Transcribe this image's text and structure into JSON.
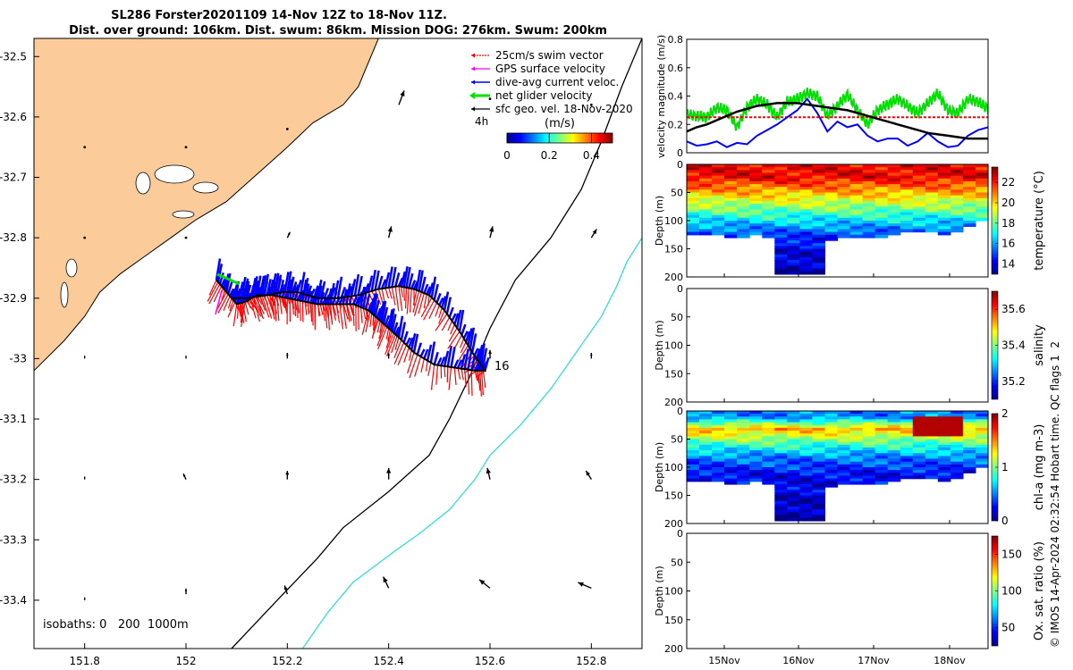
{
  "title_line1": "SL286 Forster20201109 14-Nov 12Z to 18-Nov 11Z.",
  "title_line2": "Dist. over ground: 106km. Dist. swum: 86km. Mission DOG: 276km. Swum: 200km",
  "credit": "© IMOS 14-Apr-2024 02:32:54 Hobart time. QC flags 1  2",
  "colors": {
    "land": "#fbcb9a",
    "track": "#000000",
    "swim": "#ff0000",
    "current": "#0000ff",
    "net": "#00e000",
    "gps": "#ff00ff",
    "isobath_far": "#33dddd",
    "arrow": "#000000"
  },
  "chart_data": [
    {
      "type": "map",
      "xlim": [
        151.7,
        152.9
      ],
      "ylim": [
        -33.48,
        -32.47
      ],
      "x_ticks": [
        "151.8",
        "152",
        "152.2",
        "152.4",
        "152.6",
        "152.8"
      ],
      "y_ticks": [
        "-32.5",
        "-32.6",
        "-32.7",
        "-32.8",
        "-32.9",
        "-33",
        "-33.1",
        "-33.2",
        "-33.3",
        "-33.4"
      ],
      "legend": [
        "25cm/s swim vector",
        "GPS surface velocity",
        "dive-avg current veloc.",
        "net glider velocity",
        "sfc geo. vel. 18-Nov-2020"
      ],
      "legend_placement": "top-right",
      "time_label": "4h",
      "colorbar": {
        "title": "(m/s)",
        "ticks": [
          "0",
          "0.2",
          "0.4"
        ],
        "range": [
          0,
          0.5
        ]
      },
      "isobaths_label": "isobaths: 0   200  1000m",
      "end_label": "16",
      "coast": [
        [
          151.7,
          -33.02
        ],
        [
          151.76,
          -32.97
        ],
        [
          151.8,
          -32.93
        ],
        [
          151.83,
          -32.89
        ],
        [
          151.87,
          -32.86
        ],
        [
          151.92,
          -32.83
        ],
        [
          151.97,
          -32.8
        ],
        [
          152.02,
          -32.77
        ],
        [
          152.08,
          -32.74
        ],
        [
          152.12,
          -32.71
        ],
        [
          152.16,
          -32.68
        ],
        [
          152.2,
          -32.65
        ],
        [
          152.25,
          -32.61
        ],
        [
          152.31,
          -32.58
        ],
        [
          152.34,
          -32.55
        ],
        [
          152.36,
          -32.51
        ],
        [
          152.38,
          -32.47
        ]
      ],
      "isobath_200": [
        [
          152.9,
          -32.47
        ],
        [
          152.86,
          -32.55
        ],
        [
          152.82,
          -32.64
        ],
        [
          152.78,
          -32.72
        ],
        [
          152.72,
          -32.8
        ],
        [
          152.65,
          -32.87
        ],
        [
          152.6,
          -32.95
        ],
        [
          152.56,
          -33.03
        ],
        [
          152.52,
          -33.1
        ],
        [
          152.48,
          -33.16
        ],
        [
          152.4,
          -33.22
        ],
        [
          152.31,
          -33.28
        ],
        [
          152.26,
          -33.33
        ],
        [
          152.18,
          -33.4
        ],
        [
          152.09,
          -33.48
        ]
      ],
      "isobath_1000": [
        [
          152.9,
          -32.8
        ],
        [
          152.87,
          -32.84
        ],
        [
          152.85,
          -32.88
        ],
        [
          152.82,
          -32.93
        ],
        [
          152.77,
          -32.99
        ],
        [
          152.72,
          -33.05
        ],
        [
          152.66,
          -33.11
        ],
        [
          152.6,
          -33.16
        ],
        [
          152.57,
          -33.2
        ],
        [
          152.52,
          -33.25
        ],
        [
          152.46,
          -33.29
        ],
        [
          152.41,
          -33.32
        ],
        [
          152.33,
          -33.37
        ],
        [
          152.28,
          -33.42
        ],
        [
          152.23,
          -33.48
        ]
      ],
      "track": [
        [
          152.06,
          -32.87
        ],
        [
          152.08,
          -32.89
        ],
        [
          152.1,
          -32.91
        ],
        [
          152.12,
          -32.905
        ],
        [
          152.14,
          -32.895
        ],
        [
          152.17,
          -32.895
        ],
        [
          152.2,
          -32.9
        ],
        [
          152.23,
          -32.905
        ],
        [
          152.26,
          -32.91
        ],
        [
          152.29,
          -32.91
        ],
        [
          152.33,
          -32.91
        ],
        [
          152.36,
          -32.92
        ],
        [
          152.38,
          -32.935
        ],
        [
          152.4,
          -32.95
        ],
        [
          152.42,
          -32.965
        ],
        [
          152.45,
          -32.99
        ],
        [
          152.49,
          -33.01
        ],
        [
          152.53,
          -33.015
        ],
        [
          152.57,
          -33.02
        ],
        [
          152.59,
          -33.02
        ],
        [
          152.565,
          -32.99
        ],
        [
          152.54,
          -32.955
        ],
        [
          152.51,
          -32.92
        ],
        [
          152.48,
          -32.895
        ],
        [
          152.45,
          -32.885
        ],
        [
          152.42,
          -32.88
        ],
        [
          152.38,
          -32.885
        ],
        [
          152.34,
          -32.895
        ],
        [
          152.3,
          -32.9
        ],
        [
          152.26,
          -32.9
        ],
        [
          152.22,
          -32.89
        ],
        [
          152.19,
          -32.89
        ],
        [
          152.16,
          -32.895
        ],
        [
          152.12,
          -32.9
        ],
        [
          152.09,
          -32.9
        ]
      ],
      "geo_arrows": [
        [
          151.8,
          -32.65,
          0,
          0
        ],
        [
          152.0,
          -32.65,
          0,
          0
        ],
        [
          152.2,
          -32.62,
          0,
          0
        ],
        [
          152.42,
          -32.58,
          2,
          5
        ],
        [
          152.6,
          -32.57,
          0,
          0
        ],
        [
          152.8,
          -32.58,
          0,
          0
        ],
        [
          151.8,
          -32.8,
          0,
          0
        ],
        [
          152.0,
          -32.8,
          0,
          0
        ],
        [
          152.2,
          -32.8,
          1,
          2
        ],
        [
          152.4,
          -32.8,
          1,
          4
        ],
        [
          152.6,
          -32.8,
          1,
          4
        ],
        [
          152.8,
          -32.8,
          2,
          3
        ],
        [
          151.8,
          -33.0,
          0,
          1
        ],
        [
          152.0,
          -33.0,
          0,
          1
        ],
        [
          152.2,
          -33.0,
          0,
          2
        ],
        [
          152.4,
          -33.0,
          0,
          2
        ],
        [
          152.6,
          -33.0,
          0,
          3
        ],
        [
          152.8,
          -33.0,
          0,
          2
        ],
        [
          151.8,
          -33.2,
          0,
          1
        ],
        [
          152.0,
          -33.2,
          -1,
          2
        ],
        [
          152.2,
          -33.2,
          0,
          3
        ],
        [
          152.4,
          -33.2,
          0,
          4
        ],
        [
          152.6,
          -33.2,
          -1,
          4
        ],
        [
          152.8,
          -33.2,
          -2,
          3
        ],
        [
          151.8,
          -33.4,
          0,
          1
        ],
        [
          152.0,
          -33.39,
          0,
          2
        ],
        [
          152.2,
          -33.39,
          -1,
          3
        ],
        [
          152.4,
          -33.38,
          -2,
          4
        ],
        [
          152.6,
          -33.38,
          -4,
          3
        ],
        [
          152.8,
          -33.38,
          -5,
          2
        ]
      ]
    },
    {
      "type": "line",
      "ylabel": "velocity magnitude (m/s)",
      "ylim": [
        0,
        0.8
      ],
      "y_ticks": [
        "0",
        "0.2",
        "0.4",
        "0.6",
        "0.8"
      ],
      "x_range_days": [
        "14-Nov 12Z",
        "18-Nov 11Z"
      ],
      "series": [
        {
          "color": "#00e000",
          "values": [
            0.27,
            0.26,
            0.25,
            0.32,
            0.3,
            0.18,
            0.32,
            0.38,
            0.34,
            0.25,
            0.36,
            0.38,
            0.42,
            0.4,
            0.26,
            0.33,
            0.41,
            0.3,
            0.2,
            0.3,
            0.34,
            0.38,
            0.33,
            0.28,
            0.35,
            0.42,
            0.3,
            0.28,
            0.38,
            0.36,
            0.31
          ]
        },
        {
          "color": "#ff0000",
          "values": [
            0.25,
            0.25,
            0.25,
            0.25,
            0.25,
            0.25,
            0.25,
            0.25,
            0.25,
            0.25,
            0.25,
            0.25,
            0.25,
            0.25,
            0.25,
            0.25,
            0.25,
            0.25,
            0.25,
            0.25,
            0.25,
            0.25,
            0.25,
            0.25,
            0.25,
            0.25,
            0.25,
            0.25,
            0.25,
            0.25,
            0.25
          ]
        },
        {
          "color": "#0000ff",
          "values": [
            0.08,
            0.05,
            0.06,
            0.08,
            0.04,
            0.07,
            0.06,
            0.12,
            0.16,
            0.2,
            0.25,
            0.3,
            0.38,
            0.28,
            0.15,
            0.22,
            0.18,
            0.2,
            0.12,
            0.08,
            0.1,
            0.1,
            0.05,
            0.08,
            0.14,
            0.08,
            0.04,
            0.05,
            0.12,
            0.16,
            0.18
          ]
        },
        {
          "color": "#000000",
          "values": [
            0.15,
            0.18,
            0.2,
            0.23,
            0.26,
            0.29,
            0.31,
            0.33,
            0.34,
            0.35,
            0.35,
            0.35,
            0.34,
            0.33,
            0.32,
            0.31,
            0.3,
            0.28,
            0.26,
            0.24,
            0.22,
            0.2,
            0.18,
            0.16,
            0.14,
            0.13,
            0.12,
            0.11,
            0.1,
            0.1,
            0.1
          ]
        }
      ]
    },
    {
      "type": "heatmap",
      "ylabel": "Depth (m)",
      "clabel": "temperature (°C)",
      "ylim": [
        200,
        0
      ],
      "y_ticks": [
        "0",
        "50",
        "100",
        "150",
        "200"
      ],
      "c_ticks": [
        "14",
        "16",
        "18",
        "20",
        "22"
      ],
      "crange": [
        13,
        23.5
      ],
      "profile_depth": [
        120,
        120,
        120,
        125,
        125,
        120,
        125,
        190,
        190,
        190,
        190,
        130,
        125,
        125,
        125,
        125,
        120,
        115,
        115,
        115,
        120,
        115,
        105,
        95
      ],
      "layers": [
        {
          "depth": 20,
          "value": 22.3
        },
        {
          "depth": 45,
          "value": 20.5
        },
        {
          "depth": 75,
          "value": 18.3
        },
        {
          "depth": 100,
          "value": 16.5
        },
        {
          "depth": 130,
          "value": 14.5
        },
        {
          "depth": 200,
          "value": 13.3
        }
      ]
    },
    {
      "type": "heatmap",
      "ylabel": "Depth (m)",
      "clabel": "salinity",
      "ylim": [
        200,
        0
      ],
      "y_ticks": [
        "0",
        "50",
        "100",
        "150",
        "200"
      ],
      "c_ticks": [
        "35.2",
        "35.4",
        "35.6"
      ],
      "crange": [
        35.1,
        35.7
      ],
      "empty": true
    },
    {
      "type": "heatmap",
      "ylabel": "Depth (m)",
      "clabel": "chl-a (mg m-3)",
      "ylim": [
        200,
        0
      ],
      "y_ticks": [
        "0",
        "50",
        "100",
        "150",
        "200"
      ],
      "c_ticks": [
        "0",
        "1",
        "2"
      ],
      "crange": [
        0,
        2
      ],
      "profile_depth": [
        120,
        120,
        120,
        125,
        125,
        120,
        125,
        190,
        190,
        190,
        190,
        130,
        125,
        125,
        125,
        125,
        120,
        115,
        115,
        115,
        120,
        115,
        105,
        95
      ],
      "layers": [
        {
          "depth": 8,
          "value": 0.5
        },
        {
          "depth": 30,
          "value": 1.4
        },
        {
          "depth": 55,
          "value": 0.9
        },
        {
          "depth": 80,
          "value": 0.5
        },
        {
          "depth": 110,
          "value": 0.25
        },
        {
          "depth": 200,
          "value": 0.05
        }
      ]
    },
    {
      "type": "heatmap",
      "ylabel": "Depth (m)",
      "clabel": "Ox. sat. ratio (%)",
      "ylim": [
        200,
        0
      ],
      "y_ticks": [
        "0",
        "50",
        "100",
        "150",
        "200"
      ],
      "c_ticks": [
        "50",
        "100",
        "150"
      ],
      "crange": [
        25,
        175
      ],
      "empty": true,
      "x_ticks": [
        "15Nov",
        "16Nov",
        "17Nov",
        "18Nov"
      ]
    }
  ]
}
